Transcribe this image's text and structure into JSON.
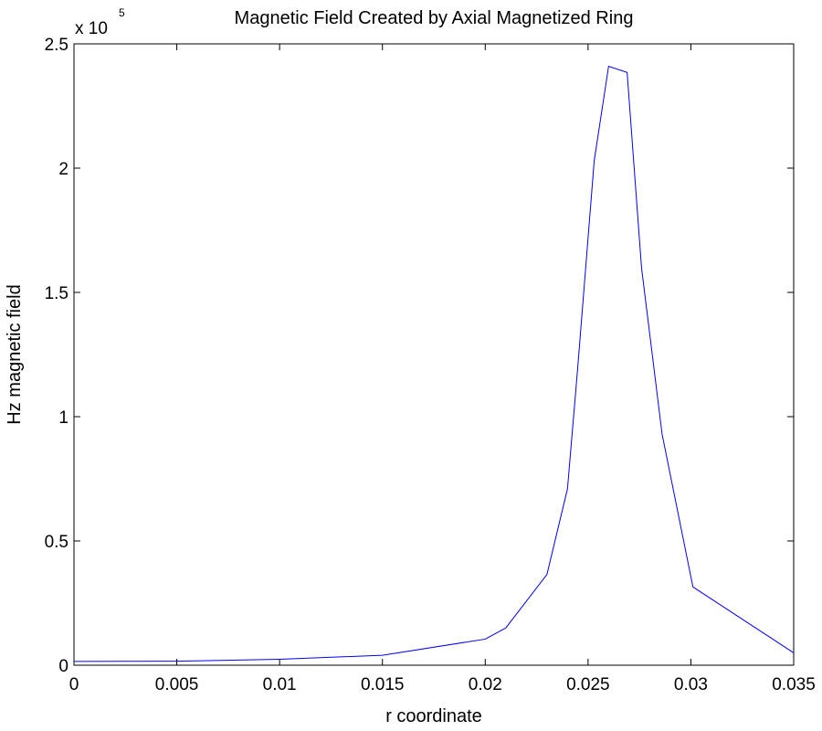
{
  "chart_data": {
    "type": "line",
    "title": "Magnetic Field Created by Axial Magnetized Ring",
    "xlabel": "r coordinate",
    "ylabel": "Hz magnetic field",
    "y_multiplier_base": "x 10",
    "y_multiplier_exponent": "5",
    "xlim": [
      0,
      0.035
    ],
    "ylim": [
      0,
      2.5
    ],
    "x_ticks": [
      0,
      0.005,
      0.01,
      0.015,
      0.02,
      0.025,
      0.03,
      0.035
    ],
    "x_tick_labels": [
      "0",
      "0.005",
      "0.01",
      "0.015",
      "0.02",
      "0.025",
      "0.03",
      "0.035"
    ],
    "y_ticks": [
      0,
      0.5,
      1,
      1.5,
      2,
      2.5
    ],
    "y_tick_labels": [
      "0",
      "0.5",
      "1",
      "1.5",
      "2",
      "2.5"
    ],
    "grid": false,
    "line_color": "#0000ff",
    "series": [
      {
        "x": [
          0,
          0.005,
          0.01,
          0.015,
          0.02,
          0.021,
          0.023,
          0.024,
          0.0245,
          0.0253,
          0.026,
          0.0269,
          0.0276,
          0.0286,
          0.0301,
          0.035
        ],
        "y": [
          0.015,
          0.016,
          0.024,
          0.04,
          0.105,
          0.15,
          0.365,
          0.71,
          1.2,
          2.03,
          2.41,
          2.385,
          1.6,
          0.93,
          0.315,
          0.05
        ]
      }
    ]
  }
}
